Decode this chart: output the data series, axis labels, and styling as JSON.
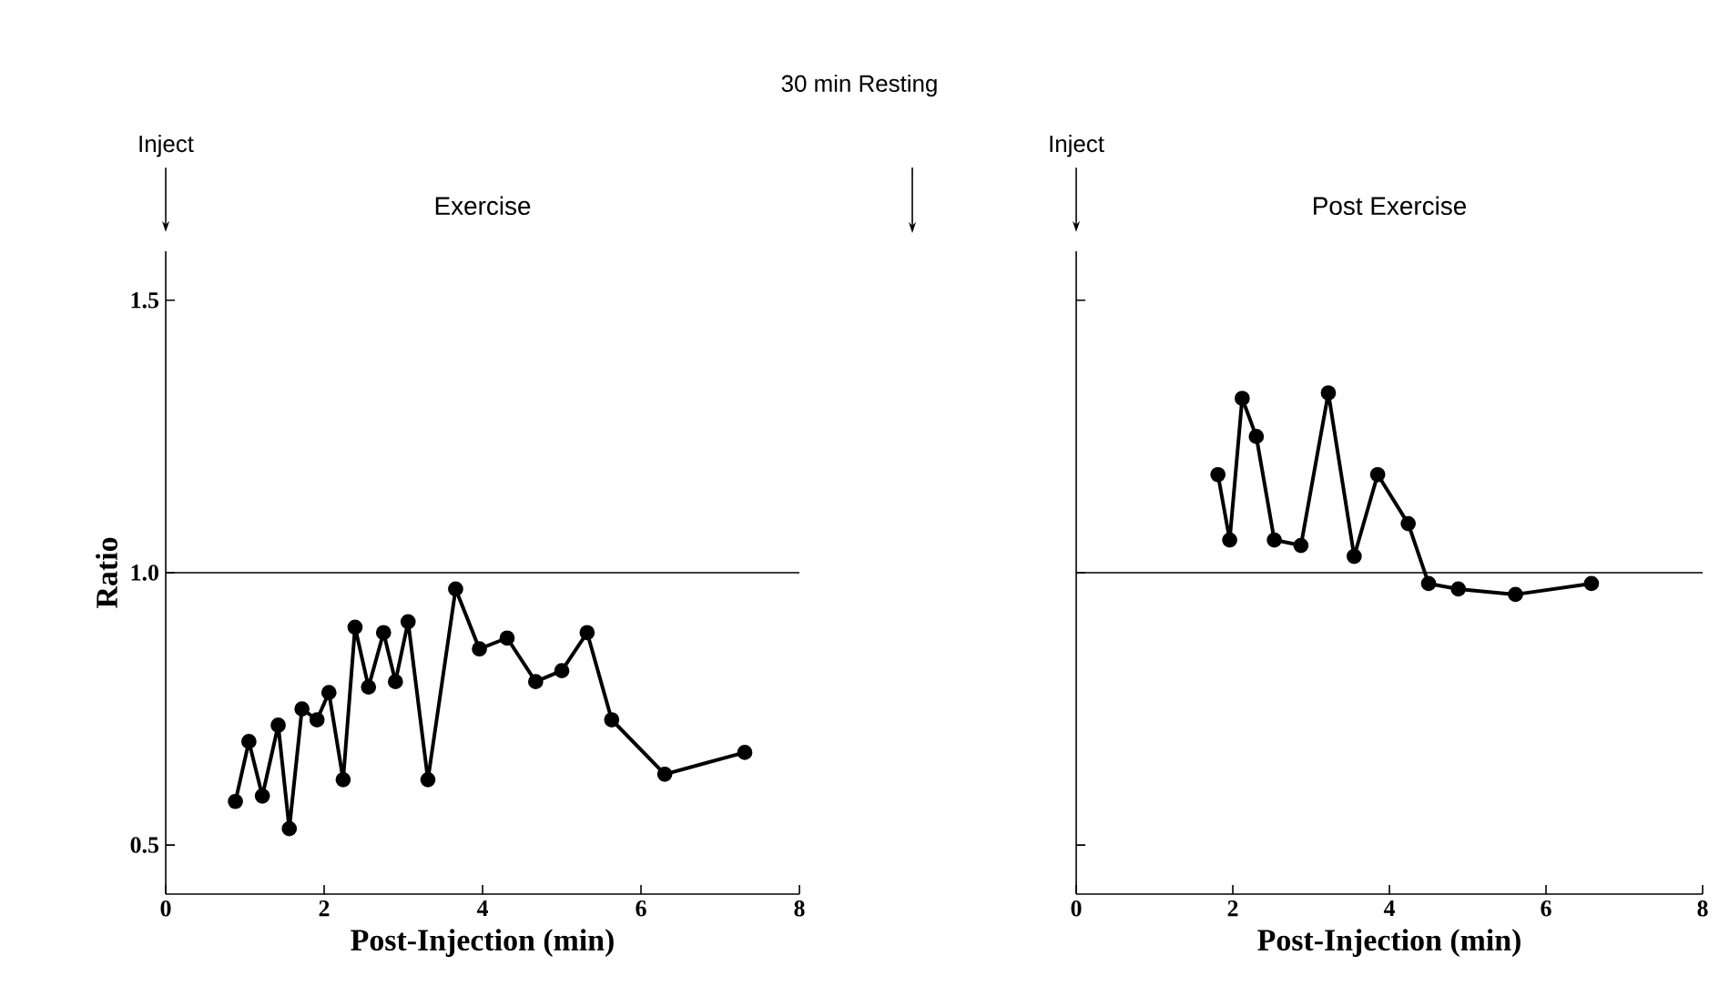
{
  "chart_data": [
    {
      "type": "line",
      "title": "30 min Resting",
      "subtitle": "Exercise",
      "xlabel": "Post-Injection (min)",
      "ylabel": "Ratio",
      "annotations": [
        "Inject"
      ],
      "x": [
        0.88,
        1.05,
        1.22,
        1.42,
        1.56,
        1.72,
        1.91,
        2.06,
        2.24,
        2.39,
        2.56,
        2.75,
        2.9,
        3.06,
        3.31,
        3.66,
        3.96,
        4.31,
        4.67,
        5.0,
        5.32,
        5.63,
        6.3,
        7.31
      ],
      "values": [
        0.58,
        0.69,
        0.59,
        0.72,
        0.53,
        0.75,
        0.73,
        0.78,
        0.62,
        0.9,
        0.79,
        0.89,
        0.8,
        0.91,
        0.62,
        0.97,
        0.86,
        0.88,
        0.8,
        0.82,
        0.89,
        0.73,
        0.63,
        0.67
      ],
      "color": "#000000",
      "marker": "circle",
      "line_style": "solid",
      "xlim": [
        0,
        8
      ],
      "ylim": [
        0.41,
        1.59
      ],
      "xticks": [
        0,
        2,
        4,
        6,
        8
      ],
      "yticks": [
        {
          "value": 0.5,
          "label": "0.5"
        },
        {
          "value": 1.0,
          "label": "1.0"
        },
        {
          "value": 1.5,
          "label": "1.5"
        }
      ],
      "ref_lines": [
        {
          "axis": "y",
          "value": 1.0
        }
      ]
    },
    {
      "type": "line",
      "subtitle": "Post Exercise",
      "xlabel": "Post-Injection (min)",
      "annotations": [
        "Inject"
      ],
      "x": [
        1.81,
        1.96,
        2.12,
        2.3,
        2.53,
        2.87,
        3.22,
        3.55,
        3.85,
        4.24,
        4.5,
        4.88,
        5.61,
        6.58
      ],
      "values": [
        1.18,
        1.06,
        1.32,
        1.25,
        1.06,
        1.05,
        1.33,
        1.03,
        1.18,
        1.09,
        0.98,
        0.97,
        0.96,
        0.98
      ],
      "color": "#000000",
      "marker": "circle",
      "line_style": "solid",
      "xlim": [
        0,
        8
      ],
      "ylim": [
        0.41,
        1.59
      ],
      "xticks": [
        0,
        2,
        4,
        6,
        8
      ],
      "yticks": [
        {
          "value": 0.5,
          "label": null
        },
        {
          "value": 1.0,
          "label": null
        },
        {
          "value": 1.5,
          "label": null
        }
      ],
      "tick_labels": "x",
      "ref_lines": [
        {
          "axis": "y",
          "value": 1.0
        }
      ]
    }
  ]
}
